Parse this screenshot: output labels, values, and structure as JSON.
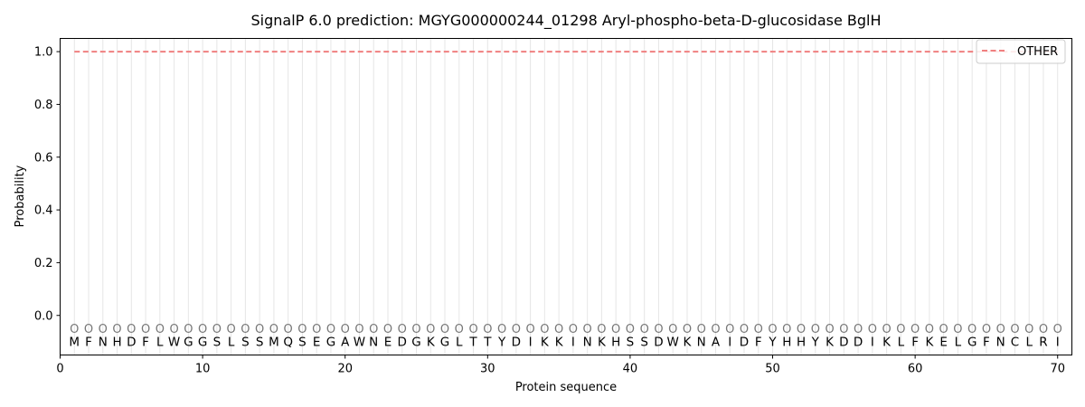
{
  "chart_data": {
    "type": "line",
    "title": "SignalP 6.0 prediction: MGYG000000244_01298 Aryl-phospho-beta-D-glucosidase BglH",
    "xlabel": "Protein sequence",
    "ylabel": "Probability",
    "xlim": [
      0,
      71
    ],
    "ylim": [
      -0.15,
      1.05
    ],
    "x_ticks": [
      0,
      10,
      20,
      30,
      40,
      50,
      60,
      70
    ],
    "y_ticks": [
      0.0,
      0.2,
      0.4,
      0.6,
      0.8,
      1.0
    ],
    "x_tick_labels": [
      "0",
      "10",
      "20",
      "30",
      "40",
      "50",
      "60",
      "70"
    ],
    "y_tick_labels": [
      "0.0",
      "0.2",
      "0.4",
      "0.6",
      "0.8",
      "1.0"
    ],
    "sequence": [
      "M",
      "F",
      "N",
      "H",
      "D",
      "F",
      "L",
      "W",
      "G",
      "G",
      "S",
      "L",
      "S",
      "S",
      "M",
      "Q",
      "S",
      "E",
      "G",
      "A",
      "W",
      "N",
      "E",
      "D",
      "G",
      "K",
      "G",
      "L",
      "T",
      "T",
      "Y",
      "D",
      "I",
      "K",
      "K",
      "I",
      "N",
      "K",
      "H",
      "S",
      "S",
      "D",
      "W",
      "K",
      "N",
      "A",
      "I",
      "D",
      "F",
      "Y",
      "H",
      "H",
      "Y",
      "K",
      "D",
      "D",
      "I",
      "K",
      "L",
      "F",
      "K",
      "E",
      "L",
      "G",
      "F",
      "N",
      "C",
      "L",
      "R",
      "I"
    ],
    "state_label": "O",
    "series": [
      {
        "name": "OTHER",
        "color": "#f08080",
        "style": "dashed",
        "x_start": 1,
        "x_end": 70,
        "value": 1.0
      }
    ],
    "grid": "vertical lines at each residue",
    "legend": {
      "position": "top-right",
      "entries": [
        "OTHER"
      ]
    }
  }
}
